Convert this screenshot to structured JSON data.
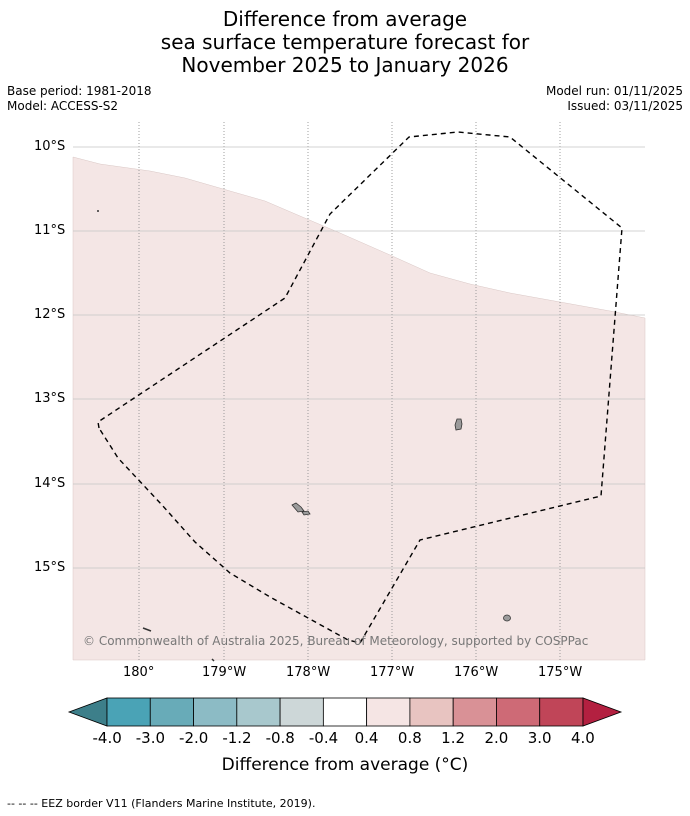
{
  "title": {
    "line1": "Difference from average",
    "line2": "sea surface temperature forecast for",
    "line3": "November 2025 to January 2026"
  },
  "meta": {
    "base_period": "Base period: 1981-2018",
    "model": "Model: ACCESS-S2",
    "model_run": "Model run: 01/11/2025",
    "issued": "Issued: 03/11/2025"
  },
  "map": {
    "lat_labels": [
      "10°S",
      "11°S",
      "12°S",
      "13°S",
      "14°S",
      "15°S"
    ],
    "lon_labels": [
      "180°",
      "179°W",
      "178°W",
      "177°W",
      "176°W",
      "175°W"
    ],
    "copyright": "© Commonwealth of Australia 2025, Bureau of Meteorology, supported by COSPPac",
    "colors": {
      "anomaly_fill": "#f4e6e5",
      "land": "#9b9b9b",
      "eez_border": "#000000",
      "grid": "#bbbbbb"
    }
  },
  "colorbar": {
    "ticks": [
      "-4.0",
      "-3.0",
      "-2.0",
      "-1.2",
      "-0.8",
      "-0.4",
      "0.4",
      "0.8",
      "1.2",
      "2.0",
      "3.0",
      "4.0"
    ],
    "colors": [
      "#3d7f8a",
      "#4aa3b6",
      "#68abb8",
      "#8cbbc5",
      "#a8c8cd",
      "#cdd7d8",
      "#ffffff",
      "#f5e5e4",
      "#e8c4c1",
      "#d99196",
      "#ce6a76",
      "#c04558",
      "#b32040"
    ],
    "title": "Difference from average (°C)"
  },
  "footnote": "--  --  -- EEZ border V11 (Flanders Marine Institute, 2019)."
}
